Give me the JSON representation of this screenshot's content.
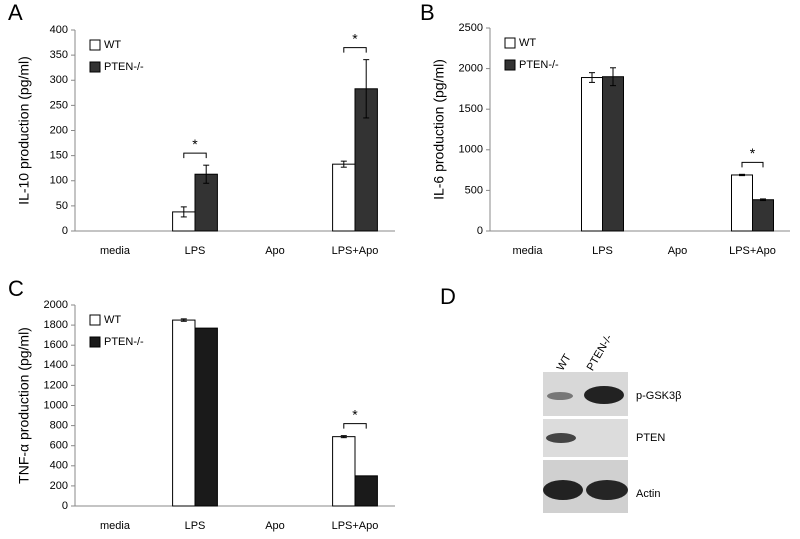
{
  "chart_data": [
    {
      "type": "bar",
      "panel": "A",
      "ylabel": "IL-10 production (pg/ml)",
      "categories": [
        "media",
        "LPS",
        "Apo",
        "LPS+Apo"
      ],
      "series": [
        {
          "name": "WT",
          "color": "#ffffff",
          "values": [
            0,
            38,
            0,
            133
          ],
          "errors": [
            null,
            10,
            null,
            6
          ]
        },
        {
          "name": "PTEN-/-",
          "color": "#333333",
          "values": [
            0,
            113,
            0,
            283
          ],
          "errors": [
            null,
            18,
            null,
            58
          ]
        }
      ],
      "ylim": [
        0,
        400
      ],
      "yticks": [
        0,
        50,
        100,
        150,
        200,
        250,
        300,
        350,
        400
      ],
      "legend": "upper left",
      "annotations": [
        {
          "label": "*",
          "category": "LPS"
        },
        {
          "label": "*",
          "category": "LPS+Apo"
        }
      ]
    },
    {
      "type": "bar",
      "panel": "B",
      "ylabel": "IL-6 production (pg/ml)",
      "categories": [
        "media",
        "LPS",
        "Apo",
        "LPS+Apo"
      ],
      "series": [
        {
          "name": "WT",
          "color": "#ffffff",
          "values": [
            0,
            1890,
            0,
            690
          ],
          "errors": [
            null,
            60,
            null,
            8
          ]
        },
        {
          "name": "PTEN-/-",
          "color": "#333333",
          "values": [
            0,
            1900,
            0,
            385
          ],
          "errors": [
            null,
            110,
            null,
            10
          ]
        }
      ],
      "ylim": [
        0,
        2500
      ],
      "yticks": [
        0,
        500,
        1000,
        1500,
        2000,
        2500
      ],
      "legend": "upper left",
      "annotations": [
        {
          "label": "*",
          "category": "LPS+Apo"
        }
      ]
    },
    {
      "type": "bar",
      "panel": "C",
      "ylabel": "TNF-α production (pg/ml)",
      "categories": [
        "media",
        "LPS",
        "Apo",
        "LPS+Apo"
      ],
      "series": [
        {
          "name": "WT",
          "color": "#ffffff",
          "values": [
            0,
            1850,
            0,
            690
          ],
          "errors": [
            null,
            12,
            null,
            10
          ]
        },
        {
          "name": "PTEN-/-",
          "color": "#1a1a1a",
          "values": [
            0,
            1770,
            0,
            300
          ],
          "errors": [
            null,
            null,
            null,
            null
          ]
        }
      ],
      "ylim": [
        0,
        2000
      ],
      "yticks": [
        0,
        200,
        400,
        600,
        800,
        1000,
        1200,
        1400,
        1600,
        1800,
        2000
      ],
      "legend": "upper left",
      "annotations": [
        {
          "label": "*",
          "category": "LPS+Apo"
        }
      ]
    }
  ],
  "blot": {
    "panel": "D",
    "lanes": [
      "WT",
      "PTEN-/-"
    ],
    "rows": [
      "p-GSK3β",
      "PTEN",
      "Actin"
    ]
  }
}
